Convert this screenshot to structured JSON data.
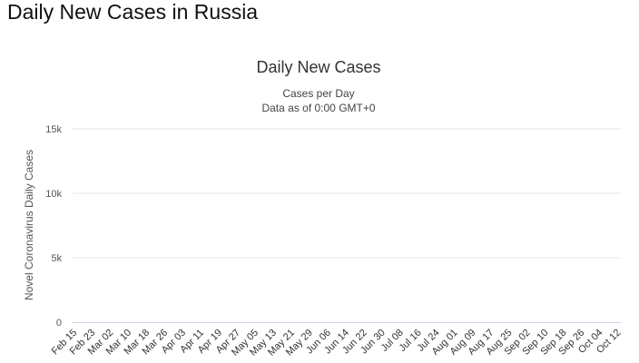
{
  "page": {
    "heading": "Daily New Cases in Russia"
  },
  "colors": {
    "bar": "#8f8f8f",
    "grid": "#e6e6e6",
    "axis": "#ccd6eb"
  },
  "chart_data": {
    "type": "bar",
    "title": "Daily New Cases",
    "subtitle_lines": [
      "Cases per Day",
      "Data as of 0:00 GMT+0"
    ],
    "xlabel": "",
    "ylabel": "Novel Coronavirus Daily Cases",
    "ylim": [
      0,
      15000
    ],
    "yticks": [
      {
        "value": 0,
        "label": "0"
      },
      {
        "value": 5000,
        "label": "5k"
      },
      {
        "value": 10000,
        "label": "10k"
      },
      {
        "value": 15000,
        "label": "15k"
      }
    ],
    "start_date": "2020-02-15",
    "end_date": "2020-10-14",
    "xtick_labels": [
      "Feb 15",
      "Feb 23",
      "Mar 02",
      "Mar 10",
      "Mar 18",
      "Mar 26",
      "Apr 03",
      "Apr 11",
      "Apr 19",
      "Apr 27",
      "May 05",
      "May 13",
      "May 21",
      "May 29",
      "Jun 06",
      "Jun 14",
      "Jun 22",
      "Jun 30",
      "Jul 08",
      "Jul 16",
      "Jul 24",
      "Aug 01",
      "Aug 09",
      "Aug 17",
      "Aug 25",
      "Sep 02",
      "Sep 10",
      "Sep 18",
      "Sep 26",
      "Oct 04",
      "Oct 12"
    ],
    "series": [
      {
        "values": [
          0,
          0,
          0,
          0,
          0,
          0,
          0,
          0,
          0,
          0,
          0,
          0,
          0,
          0,
          0,
          0,
          0,
          0,
          0,
          0,
          0,
          0,
          0,
          0,
          0,
          0,
          0,
          0,
          0,
          0,
          0,
          0,
          0,
          0,
          0,
          0,
          0,
          0,
          0,
          0,
          0,
          0,
          0,
          0,
          0,
          0,
          0,
          0,
          0,
          0,
          0,
          0,
          0,
          0,
          0,
          0,
          0,
          0,
          0,
          0,
          0,
          0,
          0,
          0,
          0,
          0,
          0,
          0,
          0,
          0,
          0,
          0,
          0,
          0,
          0,
          0,
          0,
          0,
          0,
          0,
          0,
          0,
          0,
          0,
          0,
          0,
          0,
          0,
          0,
          0,
          0,
          0,
          0,
          0,
          0,
          0,
          0,
          0,
          0,
          0,
          0,
          0,
          0,
          0,
          0,
          0,
          0,
          0,
          0,
          0,
          0,
          0,
          0,
          0,
          0,
          0,
          0,
          0,
          0,
          0,
          0,
          0,
          0,
          0,
          0,
          0,
          0,
          0,
          0,
          0,
          0,
          0,
          0,
          0,
          0,
          0,
          0,
          0,
          0,
          0,
          0,
          0,
          0,
          0,
          0,
          0,
          0,
          0,
          0,
          0,
          0,
          0,
          0,
          0,
          0,
          0,
          0,
          0,
          0,
          0,
          0,
          0,
          0,
          0,
          0,
          0,
          0,
          0,
          0,
          0,
          0,
          0,
          0,
          0,
          0,
          0,
          0,
          0,
          0,
          0,
          0,
          0,
          0,
          0,
          0,
          0,
          0,
          0,
          0,
          0,
          0,
          0,
          0,
          0,
          0,
          0,
          0,
          0,
          0,
          0,
          0,
          0,
          0,
          0,
          0,
          0,
          0,
          0,
          0,
          0,
          0,
          0,
          0,
          0,
          0,
          0,
          0,
          0,
          0,
          0,
          0,
          0,
          0,
          0,
          0,
          0,
          0,
          0,
          0,
          0,
          0,
          0,
          0,
          0,
          0,
          0,
          0,
          0,
          0,
          0,
          0,
          0
        ]
      }
    ],
    "grid": true,
    "legend": "none"
  }
}
